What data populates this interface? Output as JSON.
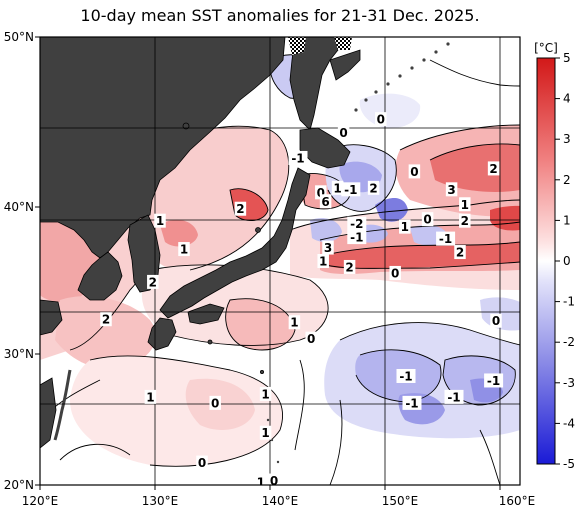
{
  "title": "10-day mean SST anomalies for 21-31 Dec. 2025.",
  "colorbar": {
    "unit": "[°C]",
    "ticks": [
      "5",
      "4",
      "3",
      "2",
      "1",
      "0",
      "-1",
      "-2",
      "-3",
      "-4",
      "-5"
    ],
    "warm_color": "#d42020",
    "cold_color": "#2020d0",
    "land_color": "#404040"
  },
  "axes": {
    "lat_labels": [
      "50°N",
      "40°N",
      "30°N",
      "20°N"
    ],
    "lon_labels": [
      "120°E",
      "130°E",
      "140°E",
      "150°E",
      "160°E"
    ]
  },
  "anomaly_labels": [
    {
      "text": "0",
      "lon": 145.3,
      "lat": 43.6
    },
    {
      "text": "0",
      "lon": 148.4,
      "lat": 44.5
    },
    {
      "text": "-1",
      "lon": 141.5,
      "lat": 41.9
    },
    {
      "text": "0",
      "lon": 151.2,
      "lat": 41.0
    },
    {
      "text": "2",
      "lon": 157.8,
      "lat": 41.2
    },
    {
      "text": "3",
      "lon": 154.3,
      "lat": 39.8
    },
    {
      "text": "0",
      "lon": 143.4,
      "lat": 39.6
    },
    {
      "text": "1",
      "lon": 144.8,
      "lat": 39.9
    },
    {
      "text": "-1",
      "lon": 145.9,
      "lat": 39.8
    },
    {
      "text": "2",
      "lon": 147.8,
      "lat": 39.9
    },
    {
      "text": "6",
      "lon": 143.8,
      "lat": 39.0
    },
    {
      "text": "1",
      "lon": 155.4,
      "lat": 38.8
    },
    {
      "text": "1",
      "lon": 130.0,
      "lat": 37.7
    },
    {
      "text": "2",
      "lon": 136.7,
      "lat": 38.5
    },
    {
      "text": "-2",
      "lon": 146.4,
      "lat": 37.5
    },
    {
      "text": "1",
      "lon": 150.4,
      "lat": 37.3
    },
    {
      "text": "0",
      "lon": 152.3,
      "lat": 37.8
    },
    {
      "text": "2",
      "lon": 155.4,
      "lat": 37.7
    },
    {
      "text": "-1",
      "lon": 146.4,
      "lat": 36.6
    },
    {
      "text": "-1",
      "lon": 153.8,
      "lat": 36.5
    },
    {
      "text": "3",
      "lon": 144.0,
      "lat": 35.9
    },
    {
      "text": "2",
      "lon": 155.0,
      "lat": 35.6
    },
    {
      "text": "1",
      "lon": 132.0,
      "lat": 35.8
    },
    {
      "text": "1",
      "lon": 143.6,
      "lat": 35.0
    },
    {
      "text": "2",
      "lon": 145.8,
      "lat": 34.6
    },
    {
      "text": "0",
      "lon": 149.6,
      "lat": 34.2
    },
    {
      "text": "2",
      "lon": 129.4,
      "lat": 33.6
    },
    {
      "text": "2",
      "lon": 125.5,
      "lat": 31.1
    },
    {
      "text": "1",
      "lon": 141.2,
      "lat": 30.9
    },
    {
      "text": "0",
      "lon": 158.0,
      "lat": 31.0
    },
    {
      "text": "0",
      "lon": 142.6,
      "lat": 29.8
    },
    {
      "text": "-1",
      "lon": 150.5,
      "lat": 27.3
    },
    {
      "text": "-1",
      "lon": 157.8,
      "lat": 27.0
    },
    {
      "text": "1",
      "lon": 129.2,
      "lat": 25.9
    },
    {
      "text": "0",
      "lon": 134.6,
      "lat": 25.5
    },
    {
      "text": "1",
      "lon": 138.8,
      "lat": 26.1
    },
    {
      "text": "-1",
      "lon": 151.0,
      "lat": 25.5
    },
    {
      "text": "-1",
      "lon": 154.5,
      "lat": 25.9
    },
    {
      "text": "1",
      "lon": 138.8,
      "lat": 23.5
    },
    {
      "text": "0",
      "lon": 133.5,
      "lat": 21.5
    },
    {
      "text": "1",
      "lon": 138.4,
      "lat": 20.2
    },
    {
      "text": "0",
      "lon": 139.5,
      "lat": 20.3
    }
  ]
}
